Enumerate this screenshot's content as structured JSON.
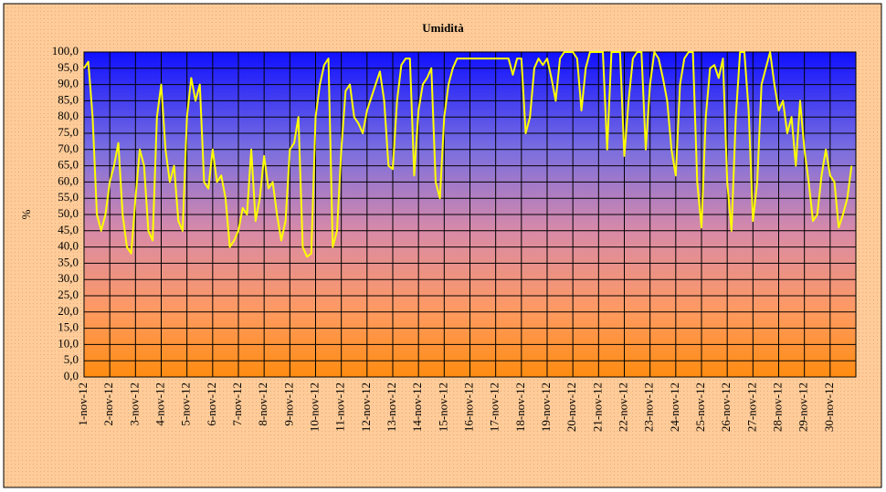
{
  "chart_data": {
    "type": "line",
    "title": "Umidità",
    "y_label": "%",
    "categories": [
      "1-nov-12",
      null,
      null,
      null,
      null,
      null,
      "2-nov-12",
      null,
      null,
      null,
      null,
      null,
      "3-nov-12",
      null,
      null,
      null,
      null,
      null,
      "4-nov-12",
      null,
      null,
      null,
      null,
      null,
      "5-nov-12",
      null,
      null,
      null,
      null,
      null,
      "6-nov-12",
      null,
      null,
      null,
      null,
      null,
      "7-nov-12",
      null,
      null,
      null,
      null,
      null,
      "8-nov-12",
      null,
      null,
      null,
      null,
      null,
      "9-nov-12",
      null,
      null,
      null,
      null,
      null,
      "10-nov-12",
      null,
      null,
      null,
      null,
      null,
      "11-nov-12",
      null,
      null,
      null,
      null,
      null,
      "12-nov-12",
      null,
      null,
      null,
      null,
      null,
      "13-nov-12",
      null,
      null,
      null,
      null,
      null,
      "14-nov-12",
      null,
      null,
      null,
      null,
      null,
      "15-nov-12",
      null,
      null,
      null,
      null,
      null,
      "16-nov-12",
      null,
      null,
      null,
      null,
      null,
      "17-nov-12",
      null,
      null,
      null,
      null,
      null,
      "18-nov-12",
      null,
      null,
      null,
      null,
      null,
      "19-nov-12",
      null,
      null,
      null,
      null,
      null,
      "20-nov-12",
      null,
      null,
      null,
      null,
      null,
      "21-nov-12",
      null,
      null,
      null,
      null,
      null,
      "22-nov-12",
      null,
      null,
      null,
      null,
      null,
      "23-nov-12",
      null,
      null,
      null,
      null,
      null,
      "24-nov-12",
      null,
      null,
      null,
      null,
      null,
      "25-nov-12",
      null,
      null,
      null,
      null,
      null,
      "26-nov-12",
      null,
      null,
      null,
      null,
      null,
      "27-nov-12",
      null,
      null,
      null,
      null,
      null,
      "28-nov-12",
      null,
      null,
      null,
      null,
      null,
      "29-nov-12",
      null,
      null,
      null,
      null,
      null,
      "30-nov-12",
      null,
      null,
      null,
      null,
      null
    ],
    "series": [
      {
        "name": "Umidità",
        "color": "#ffff00",
        "values": [
          95,
          97,
          80,
          50,
          45,
          50,
          60,
          65,
          72,
          50,
          40,
          38,
          55,
          70,
          65,
          45,
          42,
          80,
          90,
          70,
          60,
          65,
          48,
          45,
          80,
          92,
          85,
          90,
          60,
          58,
          70,
          60,
          62,
          55,
          40,
          42,
          45,
          52,
          50,
          70,
          48,
          55,
          68,
          58,
          60,
          50,
          42,
          48,
          70,
          72,
          80,
          40,
          37,
          38,
          80,
          90,
          96,
          98,
          40,
          45,
          70,
          88,
          90,
          80,
          78,
          75,
          82,
          86,
          90,
          94,
          85,
          65,
          64,
          85,
          96,
          98,
          98,
          62,
          82,
          90,
          92,
          95,
          60,
          55,
          80,
          90,
          95,
          98,
          98,
          98,
          98,
          98,
          98,
          98,
          98,
          98,
          98,
          98,
          98,
          98,
          93,
          98,
          98,
          75,
          80,
          95,
          98,
          96,
          98,
          92,
          85,
          98,
          100,
          100,
          100,
          98,
          82,
          95,
          100,
          100,
          100,
          100,
          70,
          100,
          100,
          100,
          68,
          85,
          98,
          100,
          100,
          70,
          90,
          100,
          98,
          92,
          85,
          70,
          62,
          90,
          98,
          100,
          100,
          60,
          46,
          80,
          95,
          96,
          92,
          98,
          60,
          45,
          80,
          100,
          100,
          82,
          48,
          60,
          90,
          95,
          100,
          90,
          82,
          85,
          75,
          80,
          65,
          85,
          70,
          60,
          48,
          50,
          62,
          70,
          62,
          60,
          46,
          50,
          55,
          65
        ]
      }
    ],
    "ylim": [
      0,
      100
    ],
    "yticks": [
      {
        "value": 0,
        "label": "0,0"
      },
      {
        "value": 5,
        "label": "5,0"
      },
      {
        "value": 10,
        "label": "10,0"
      },
      {
        "value": 15,
        "label": "15,0"
      },
      {
        "value": 20,
        "label": "20,0"
      },
      {
        "value": 25,
        "label": "25,0"
      },
      {
        "value": 30,
        "label": "30,0"
      },
      {
        "value": 35,
        "label": "35,0"
      },
      {
        "value": 40,
        "label": "40,0"
      },
      {
        "value": 45,
        "label": "45,0"
      },
      {
        "value": 50,
        "label": "50,0"
      },
      {
        "value": 55,
        "label": "55,0"
      },
      {
        "value": 60,
        "label": "60,0"
      },
      {
        "value": 65,
        "label": "65,0"
      },
      {
        "value": 70,
        "label": "70,0"
      },
      {
        "value": 75,
        "label": "75,0"
      },
      {
        "value": 80,
        "label": "80,0"
      },
      {
        "value": 85,
        "label": "85,0"
      },
      {
        "value": 90,
        "label": "90,0"
      },
      {
        "value": 95,
        "label": "95,0"
      },
      {
        "value": 100,
        "label": "100,0"
      }
    ],
    "grid": true
  }
}
